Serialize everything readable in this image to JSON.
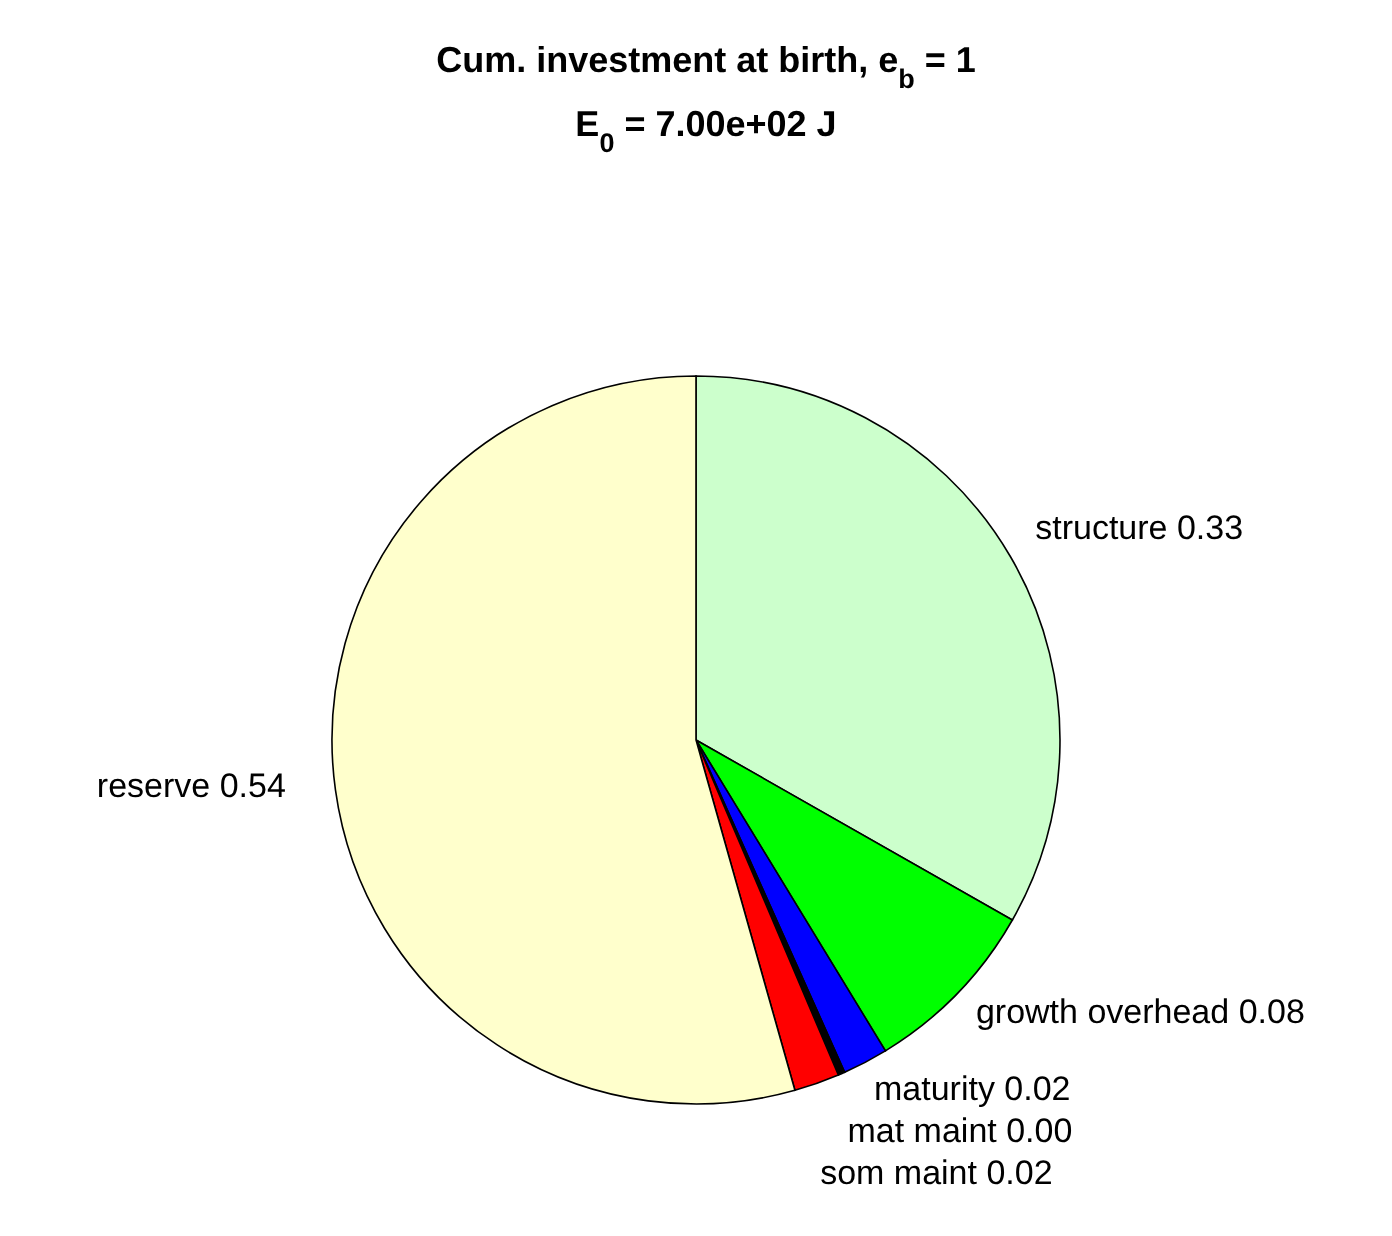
{
  "chart_data": {
    "type": "pie",
    "title": "Cum. investment at birth, e$_{b}$ = 1",
    "subtitle": "E$_{0}$ = 7.00e+02 J",
    "categories": [
      "structure",
      "growth overhead",
      "maturity",
      "mat maint",
      "som maint",
      "reserve"
    ],
    "values": [
      0.33,
      0.08,
      0.02,
      0.003,
      0.02,
      0.54
    ],
    "value_labels": [
      "0.33",
      "0.08",
      "0.02",
      "0.00",
      "0.02",
      "0.54"
    ],
    "colors": [
      "#ccffcc",
      "#00ff00",
      "#0000ff",
      "#000000",
      "#ff0000",
      "#ffffcc"
    ],
    "legend": false
  }
}
